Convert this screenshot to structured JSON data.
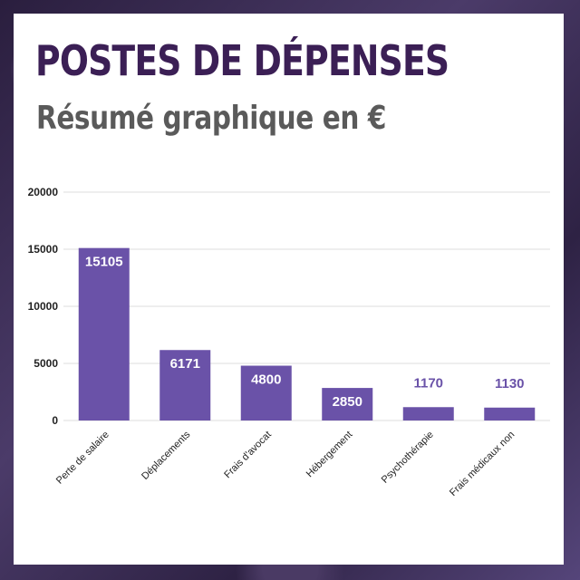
{
  "header": {
    "title": "POSTES DE DÉPENSES",
    "subtitle": "Résumé graphique en €"
  },
  "colors": {
    "bar": "#6a52a8",
    "bar_label_inside": "#ffffff",
    "bar_label_outside": "#6a52a8",
    "grid": "#dddddd",
    "axis_text": "#222222",
    "title": "#3b1f55",
    "subtitle": "#5a5a5a"
  },
  "chart_data": {
    "type": "bar",
    "categories": [
      "Perte de salaire",
      "Déplacements",
      "Frais d'avocat",
      "Hébergement",
      "Psychothérapie",
      "Frais médicaux non"
    ],
    "values": [
      15105,
      6171,
      4800,
      2850,
      1170,
      1130
    ],
    "ylim": [
      0,
      20000
    ],
    "yticks": [
      "0",
      "5000",
      "10000",
      "15000",
      "20000"
    ],
    "grid": true,
    "legend": "none"
  }
}
